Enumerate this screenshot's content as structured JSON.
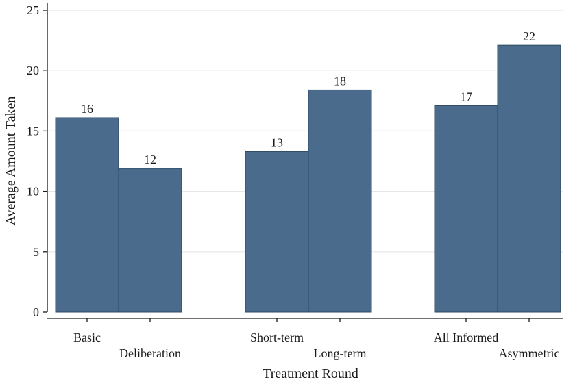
{
  "chart_data": {
    "type": "bar",
    "xlabel": "Treatment Round",
    "ylabel": "Average Amount Taken",
    "ylim": [
      0,
      25
    ],
    "yticks": [
      0,
      5,
      10,
      15,
      20,
      25
    ],
    "grid": true,
    "categories": [
      "Basic",
      "Deliberation",
      "Short-term",
      "Long-term",
      "All Informed",
      "Asymmetric"
    ],
    "values": [
      16.1,
      11.9,
      13.3,
      18.4,
      17.1,
      22.1
    ],
    "data_labels": [
      "16",
      "12",
      "13",
      "18",
      "17",
      "22"
    ],
    "groups": [
      [
        0,
        1
      ],
      [
        2,
        3
      ],
      [
        4,
        5
      ]
    ],
    "bar_color": "#4a6b8c",
    "grid_color": "#e6e6e6"
  }
}
